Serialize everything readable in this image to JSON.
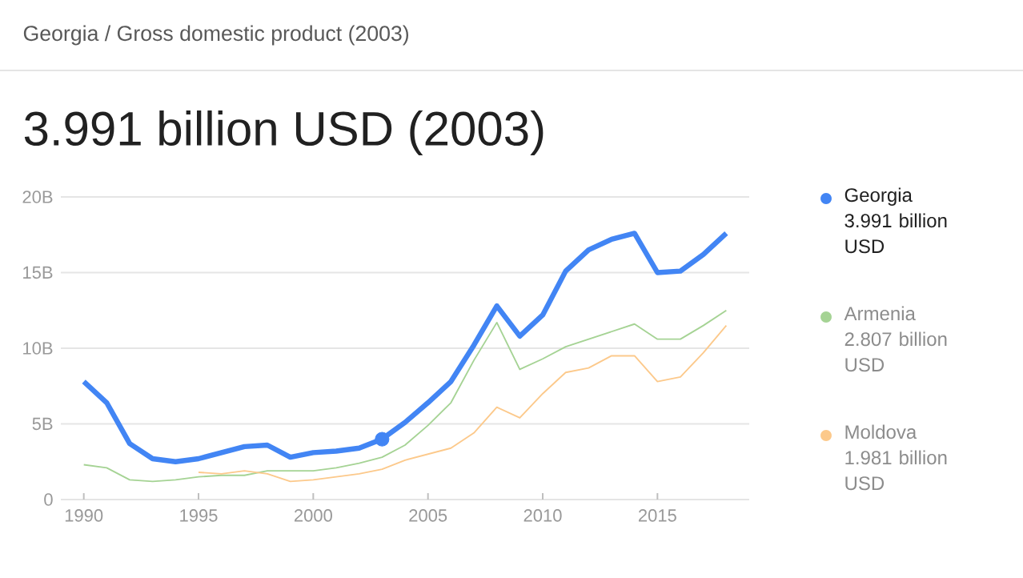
{
  "chart_data": {
    "type": "line",
    "subtitle": "Georgia / Gross domestic product (2003)",
    "title": "3.991 billion USD (2003)",
    "x": [
      1990,
      1991,
      1992,
      1993,
      1994,
      1995,
      1996,
      1997,
      1998,
      1999,
      2000,
      2001,
      2002,
      2003,
      2004,
      2005,
      2006,
      2007,
      2008,
      2009,
      2010,
      2011,
      2012,
      2013,
      2014,
      2015,
      2016,
      2017,
      2018
    ],
    "series": [
      {
        "name": "Georgia",
        "color": "#4285f4",
        "values": [
          7.8,
          6.4,
          3.7,
          2.7,
          2.5,
          2.7,
          3.1,
          3.5,
          3.6,
          2.8,
          3.1,
          3.2,
          3.4,
          4.0,
          5.1,
          6.4,
          7.8,
          10.2,
          12.8,
          10.8,
          12.2,
          15.1,
          16.5,
          17.2,
          17.6,
          15.0,
          15.1,
          16.2,
          17.6
        ]
      },
      {
        "name": "Armenia",
        "color": "#a5d394",
        "values": [
          2.3,
          2.1,
          1.3,
          1.2,
          1.3,
          1.5,
          1.6,
          1.6,
          1.9,
          1.9,
          1.9,
          2.1,
          2.4,
          2.8,
          3.6,
          4.9,
          6.4,
          9.2,
          11.7,
          8.6,
          9.3,
          10.1,
          10.6,
          11.1,
          11.6,
          10.6,
          10.6,
          11.5,
          12.5
        ]
      },
      {
        "name": "Moldova",
        "color": "#fcc98b",
        "x": [
          1995,
          1996,
          1997,
          1998,
          1999,
          2000,
          2001,
          2002,
          2003,
          2004,
          2005,
          2006,
          2007,
          2008,
          2009,
          2010,
          2011,
          2012,
          2013,
          2014,
          2015,
          2016,
          2017,
          2018
        ],
        "values": [
          1.8,
          1.7,
          1.9,
          1.7,
          1.2,
          1.3,
          1.5,
          1.7,
          2.0,
          2.6,
          3.0,
          3.4,
          4.4,
          6.1,
          5.4,
          7.0,
          8.4,
          8.7,
          9.5,
          9.5,
          7.8,
          8.1,
          9.7,
          11.5
        ]
      },
      {
        "type": "scatter",
        "color": "#4285f4",
        "x": [
          2003
        ],
        "values": [
          3.991
        ]
      }
    ],
    "annotations": [
      "3.991 billion USD",
      "2.807 billion USD",
      "1.981 billion USD"
    ],
    "xlim": [
      1989,
      2019
    ],
    "ylim": [
      0,
      20
    ],
    "xticks": [
      1990,
      1995,
      2000,
      2005,
      2010,
      2015
    ],
    "yticks": [
      0,
      {
        "value": 5,
        "label": "5B"
      },
      {
        "value": 10,
        "label": "10B"
      },
      {
        "value": 15,
        "label": "15B"
      },
      {
        "value": 20,
        "label": "20B"
      }
    ],
    "grid": "y",
    "legend": "right"
  }
}
